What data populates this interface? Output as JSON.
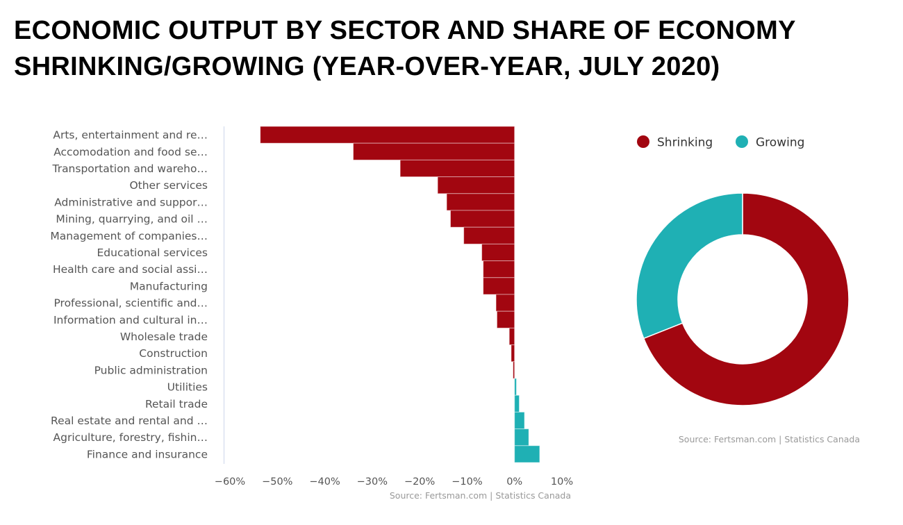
{
  "title_lines": [
    "ECONOMIC OUTPUT BY SECTOR AND SHARE OF ECONOMY",
    "SHRINKING/GROWING (YEAR-OVER-YEAR, JULY 2020)"
  ],
  "colors": {
    "shrinking": "#a20610",
    "growing": "#1fb0b4",
    "axis_line": "#ccd6eb"
  },
  "chart_data": [
    {
      "type": "bar",
      "orientation": "horizontal",
      "title": "",
      "xlabel": "",
      "ylabel": "",
      "xlim": [
        -60,
        10
      ],
      "x_ticks": [
        -60,
        -50,
        -40,
        -30,
        -20,
        -10,
        0,
        10
      ],
      "x_tick_labels": [
        "−60%",
        "−50%",
        "−40%",
        "−30%",
        "−20%",
        "−10%",
        "0%",
        "10%"
      ],
      "grid": false,
      "source": "Source: Fertsman.com | Statistics Canada",
      "categories": [
        "Arts, entertainment and re…",
        "Accomodation and food se…",
        "Transportation and wareho…",
        "Other services",
        "Administrative and suppor…",
        "Mining, quarrying, and oil …",
        "Management of companies…",
        "Educational services",
        "Health care and social assi…",
        "Manufacturing",
        "Professional, scientific and…",
        "Information and cultural in…",
        "Wholesale trade",
        "Construction",
        "Public administration",
        "Utilities",
        "Retail trade",
        "Real estate and rental and …",
        "Agriculture, forestry, fishin…",
        "Finance and insurance"
      ],
      "values": [
        -53.6,
        -34.0,
        -24.1,
        -16.2,
        -14.3,
        -13.5,
        -10.7,
        -6.9,
        -6.6,
        -6.6,
        -3.9,
        -3.7,
        -1.1,
        -0.7,
        -0.3,
        0.4,
        1.0,
        2.1,
        3.0,
        5.3
      ],
      "unit": "%"
    },
    {
      "type": "pie",
      "variant": "donut",
      "title": "",
      "legend_position": "top",
      "labels": [
        "Shrinking",
        "Growing"
      ],
      "values": [
        69,
        31
      ],
      "unit": "% of economy",
      "source": "Source: Fertsman.com | Statistics Canada"
    }
  ]
}
